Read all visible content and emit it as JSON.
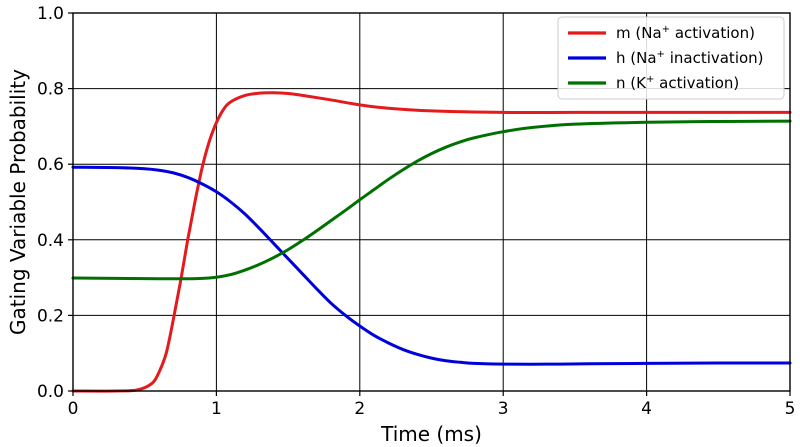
{
  "chart_data": {
    "type": "line",
    "xlabel": "Time (ms)",
    "ylabel": "Gating Variable Probability",
    "xlim": [
      0,
      5
    ],
    "ylim": [
      0,
      1.0
    ],
    "xticks": [
      0,
      1,
      2,
      3,
      4,
      5
    ],
    "xtick_labels": [
      "0",
      "1",
      "2",
      "3",
      "4",
      "5"
    ],
    "yticks": [
      0,
      0.2,
      0.4,
      0.6,
      0.8,
      1.0
    ],
    "ytick_labels": [
      "0.0",
      "0.2",
      "0.4",
      "0.6",
      "0.8",
      "1.0"
    ],
    "grid": true,
    "legend_position": "top-right",
    "series": [
      {
        "key": "m",
        "color": "#e41a1c",
        "legend": {
          "prefix": "m (Na",
          "sup": "+",
          "suffix": " activation)"
        },
        "points": [
          [
            0,
            0.0
          ],
          [
            0.3,
            0.0
          ],
          [
            0.45,
            0.003
          ],
          [
            0.55,
            0.02
          ],
          [
            0.6,
            0.05
          ],
          [
            0.65,
            0.1
          ],
          [
            0.7,
            0.19
          ],
          [
            0.75,
            0.29
          ],
          [
            0.8,
            0.4
          ],
          [
            0.85,
            0.5
          ],
          [
            0.9,
            0.59
          ],
          [
            0.95,
            0.66
          ],
          [
            1.0,
            0.71
          ],
          [
            1.05,
            0.745
          ],
          [
            1.1,
            0.765
          ],
          [
            1.2,
            0.782
          ],
          [
            1.3,
            0.788
          ],
          [
            1.4,
            0.789
          ],
          [
            1.5,
            0.787
          ],
          [
            1.6,
            0.782
          ],
          [
            1.8,
            0.77
          ],
          [
            2.0,
            0.757
          ],
          [
            2.2,
            0.748
          ],
          [
            2.5,
            0.741
          ],
          [
            3.0,
            0.737
          ],
          [
            3.5,
            0.737
          ],
          [
            4.0,
            0.737
          ],
          [
            5.0,
            0.737
          ]
        ]
      },
      {
        "key": "h",
        "color": "#0000dd",
        "legend": {
          "prefix": "h (Na",
          "sup": "+",
          "suffix": " inactivation)"
        },
        "points": [
          [
            0,
            0.592
          ],
          [
            0.3,
            0.591
          ],
          [
            0.5,
            0.588
          ],
          [
            0.6,
            0.584
          ],
          [
            0.7,
            0.577
          ],
          [
            0.8,
            0.565
          ],
          [
            0.9,
            0.548
          ],
          [
            1.0,
            0.527
          ],
          [
            1.1,
            0.5
          ],
          [
            1.2,
            0.468
          ],
          [
            1.3,
            0.43
          ],
          [
            1.4,
            0.39
          ],
          [
            1.5,
            0.35
          ],
          [
            1.6,
            0.31
          ],
          [
            1.7,
            0.27
          ],
          [
            1.8,
            0.232
          ],
          [
            1.9,
            0.2
          ],
          [
            2.0,
            0.172
          ],
          [
            2.1,
            0.147
          ],
          [
            2.2,
            0.127
          ],
          [
            2.3,
            0.11
          ],
          [
            2.4,
            0.097
          ],
          [
            2.5,
            0.087
          ],
          [
            2.6,
            0.08
          ],
          [
            2.7,
            0.076
          ],
          [
            2.8,
            0.073
          ],
          [
            3.0,
            0.071
          ],
          [
            3.3,
            0.071
          ],
          [
            3.6,
            0.072
          ],
          [
            4.0,
            0.073
          ],
          [
            4.5,
            0.074
          ],
          [
            5.0,
            0.074
          ]
        ]
      },
      {
        "key": "n",
        "color": "#007000",
        "legend": {
          "prefix": "n (K",
          "sup": "+",
          "suffix": " activation)"
        },
        "points": [
          [
            0,
            0.299
          ],
          [
            0.3,
            0.298
          ],
          [
            0.6,
            0.297
          ],
          [
            0.8,
            0.297
          ],
          [
            0.9,
            0.298
          ],
          [
            1.0,
            0.301
          ],
          [
            1.1,
            0.308
          ],
          [
            1.2,
            0.32
          ],
          [
            1.3,
            0.335
          ],
          [
            1.4,
            0.353
          ],
          [
            1.5,
            0.374
          ],
          [
            1.6,
            0.398
          ],
          [
            1.7,
            0.424
          ],
          [
            1.8,
            0.451
          ],
          [
            1.9,
            0.478
          ],
          [
            2.0,
            0.506
          ],
          [
            2.1,
            0.533
          ],
          [
            2.2,
            0.56
          ],
          [
            2.3,
            0.585
          ],
          [
            2.4,
            0.608
          ],
          [
            2.5,
            0.628
          ],
          [
            2.6,
            0.645
          ],
          [
            2.7,
            0.659
          ],
          [
            2.8,
            0.67
          ],
          [
            3.0,
            0.686
          ],
          [
            3.2,
            0.697
          ],
          [
            3.5,
            0.706
          ],
          [
            4.0,
            0.711
          ],
          [
            4.5,
            0.713
          ],
          [
            5.0,
            0.714
          ]
        ]
      }
    ]
  }
}
